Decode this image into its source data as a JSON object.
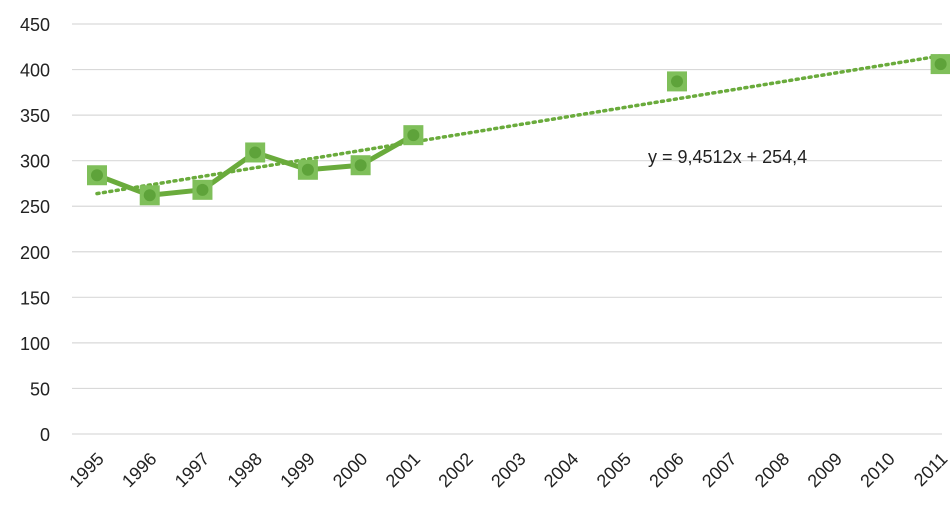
{
  "chart_data": {
    "type": "line",
    "categories": [
      "1995",
      "1996",
      "1997",
      "1998",
      "1999",
      "2000",
      "2001",
      "2002",
      "2003",
      "2004",
      "2005",
      "2006",
      "2007",
      "2008",
      "2009",
      "2010",
      "2011"
    ],
    "series": [
      {
        "values": [
          284,
          262,
          268,
          309,
          290,
          295,
          328,
          null,
          null,
          null,
          null,
          387,
          null,
          null,
          null,
          null,
          406
        ],
        "color": "#6aab3c",
        "marker": "square"
      }
    ],
    "trendline": {
      "type": "linear",
      "slope": 9.4512,
      "intercept": 254.4,
      "label": "y = 9,4512x + 254,4",
      "color": "#6aab3c",
      "style": "dotted"
    },
    "ylim": [
      0,
      450
    ],
    "yticks": [
      "0",
      "50",
      "100",
      "150",
      "200",
      "250",
      "300",
      "350",
      "400",
      "450"
    ],
    "grid": true
  }
}
